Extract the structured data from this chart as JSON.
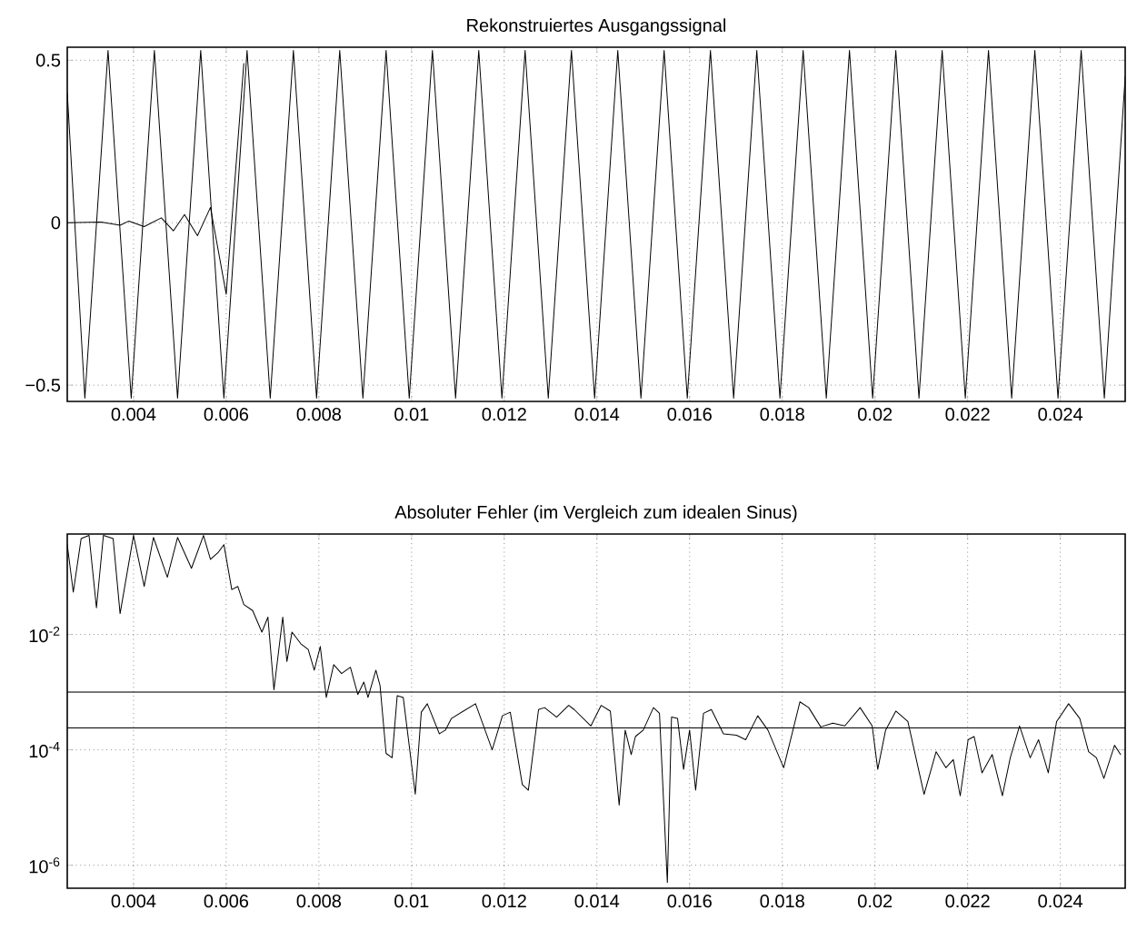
{
  "chart_data": [
    {
      "type": "line",
      "title": "Rekonstruiertes Ausgangssignal",
      "xlim": [
        0.00257,
        0.0254
      ],
      "ylim": [
        -0.55,
        0.54
      ],
      "xticks": [
        0.004,
        0.006,
        0.008,
        0.01,
        0.012,
        0.014,
        0.016,
        0.018,
        0.02,
        0.022,
        0.024
      ],
      "yticks": [
        {
          "value": -0.5,
          "label": "−0.5"
        },
        0,
        0.5
      ],
      "grid": true,
      "series": [
        {
          "color": "#000000",
          "x": [
            0.00257,
            0.00295,
            0.00345,
            0.00395,
            0.00445,
            0.00495,
            0.00545,
            0.00595,
            0.00645,
            0.00695,
            0.00745,
            0.00795,
            0.00845,
            0.00895,
            0.00945,
            0.00995,
            0.01045,
            0.01095,
            0.01145,
            0.01195,
            0.01245,
            0.01295,
            0.01345,
            0.01395,
            0.01445,
            0.01495,
            0.01545,
            0.01595,
            0.01645,
            0.01695,
            0.01745,
            0.01795,
            0.01845,
            0.01895,
            0.01945,
            0.01995,
            0.02045,
            0.02095,
            0.02145,
            0.02195,
            0.02245,
            0.02295,
            0.02345,
            0.02395,
            0.02445,
            0.02495,
            0.0254
          ],
          "values": [
            0.4,
            -0.54,
            0.53,
            -0.54,
            0.53,
            -0.54,
            0.53,
            -0.54,
            0.53,
            -0.54,
            0.53,
            -0.54,
            0.53,
            -0.54,
            0.53,
            -0.54,
            0.53,
            -0.54,
            0.53,
            -0.54,
            0.53,
            -0.54,
            0.53,
            -0.54,
            0.53,
            -0.54,
            0.53,
            -0.54,
            0.53,
            -0.54,
            0.53,
            -0.54,
            0.53,
            -0.54,
            0.53,
            -0.54,
            0.53,
            -0.54,
            0.53,
            -0.54,
            0.53,
            -0.54,
            0.53,
            -0.54,
            0.53,
            -0.54,
            0.45
          ]
        },
        {
          "color": "#000000",
          "x": [
            0.00257,
            0.0033,
            0.00371,
            0.0039,
            0.00423,
            0.0046,
            0.00486,
            0.0051,
            0.00538,
            0.00566,
            0.006,
            0.00638
          ],
          "values": [
            0,
            0.002,
            -0.008,
            0.005,
            -0.012,
            0.015,
            -0.025,
            0.025,
            -0.04,
            0.047,
            -0.22,
            0.49
          ]
        }
      ]
    },
    {
      "type": "line",
      "title": "Absoluter Fehler (im Vergleich zum idealen Sinus)",
      "log": "y",
      "xlim": [
        0.00257,
        0.0254
      ],
      "ylim": [
        4e-07,
        0.55
      ],
      "xticks": [
        0.004,
        0.006,
        0.008,
        0.01,
        0.012,
        0.014,
        0.016,
        0.018,
        0.02,
        0.022,
        0.024
      ],
      "yticks": [
        {
          "value": 1e-06,
          "label": "10$^{-6}$"
        },
        {
          "value": 0.0001,
          "label": "10$^{-4}$"
        },
        {
          "value": 0.01,
          "label": "10$^{-2}$"
        }
      ],
      "grid": true,
      "ref_lines": [
        {
          "axis": "y",
          "value": 0.001,
          "color": "#000000"
        },
        {
          "axis": "y",
          "value": 0.00024,
          "color": "#000000"
        }
      ],
      "series": [
        {
          "color": "#000000",
          "x": [
            0.00257,
            0.0027,
            0.00287,
            0.00304,
            0.0032,
            0.00335,
            0.00356,
            0.00371,
            0.004,
            0.00423,
            0.00443,
            0.00473,
            0.00495,
            0.00525,
            0.00551,
            0.00566,
            0.00582,
            0.00595,
            0.00612,
            0.00625,
            0.00638,
            0.00657,
            0.00677,
            0.0069,
            0.00703,
            0.00722,
            0.00731,
            0.00742,
            0.00761,
            0.00777,
            0.0079,
            0.00803,
            0.00816,
            0.00832,
            0.00849,
            0.00868,
            0.00884,
            0.00897,
            0.00906,
            0.00923,
            0.00932,
            0.00945,
            0.00958,
            0.00969,
            0.00982,
            0.01008,
            0.01021,
            0.01034,
            0.0106,
            0.01073,
            0.01086,
            0.01138,
            0.01174,
            0.01196,
            0.01213,
            0.01239,
            0.01252,
            0.01274,
            0.01287,
            0.01313,
            0.01339,
            0.01351,
            0.01387,
            0.01409,
            0.01429,
            0.01448,
            0.01461,
            0.01474,
            0.01483,
            0.015,
            0.01522,
            0.01535,
            0.01552,
            0.01561,
            0.01574,
            0.01587,
            0.016,
            0.01613,
            0.0163,
            0.01647,
            0.01673,
            0.01701,
            0.01721,
            0.01747,
            0.01769,
            0.01803,
            0.01838,
            0.01857,
            0.01883,
            0.01909,
            0.01935,
            0.01968,
            0.01994,
            0.02006,
            0.02023,
            0.02045,
            0.02071,
            0.02106,
            0.02132,
            0.02153,
            0.02169,
            0.02184,
            0.02201,
            0.02214,
            0.02231,
            0.02253,
            0.02275,
            0.02292,
            0.02312,
            0.02335,
            0.02353,
            0.02374,
            0.02392,
            0.02418,
            0.02442,
            0.02461,
            0.02478,
            0.02494,
            0.02517,
            0.0253
          ],
          "values": [
            0.36,
            0.054,
            0.46,
            0.52,
            0.029,
            0.52,
            0.46,
            0.023,
            0.52,
            0.068,
            0.48,
            0.098,
            0.48,
            0.14,
            0.52,
            0.2,
            0.26,
            0.36,
            0.06,
            0.068,
            0.033,
            0.026,
            0.011,
            0.02,
            0.0011,
            0.02,
            0.0034,
            0.011,
            0.0069,
            0.0055,
            0.0024,
            0.0062,
            0.00081,
            0.003,
            0.0021,
            0.0027,
            0.00091,
            0.0015,
            0.00081,
            0.0024,
            0.0013,
            8.7e-05,
            7.3e-05,
            0.00087,
            0.00081,
            1.7e-05,
            0.00045,
            0.00063,
            0.00019,
            0.00022,
            0.00035,
            0.00063,
            0.0001,
            0.00039,
            0.00045,
            2.5e-05,
            2e-05,
            0.0005,
            0.00054,
            0.00037,
            0.00059,
            0.0005,
            0.00026,
            0.00059,
            0.00047,
            1.1e-05,
            0.00022,
            8.3e-05,
            0.00017,
            0.00022,
            0.00054,
            0.00043,
            5e-07,
            0.00037,
            0.00035,
            4.6e-05,
            0.00022,
            2e-05,
            0.00043,
            0.0005,
            0.00019,
            0.00018,
            0.00015,
            0.00039,
            0.00022,
            4.9e-05,
            0.00068,
            0.00054,
            0.00025,
            0.00029,
            0.00026,
            0.00054,
            0.00026,
            4.6e-05,
            0.00022,
            0.00047,
            0.00031,
            1.7e-05,
            9.3e-05,
            4.9e-05,
            6.8e-05,
            1.6e-05,
            0.00015,
            0.00017,
            4e-05,
            8.3e-05,
            1.6e-05,
            7.3e-05,
            0.00026,
            7.3e-05,
            0.00015,
            4e-05,
            0.00031,
            0.00063,
            0.00035,
            9.3e-05,
            7.3e-05,
            3.2e-05,
            0.00012,
            8.3e-05
          ]
        }
      ]
    }
  ]
}
